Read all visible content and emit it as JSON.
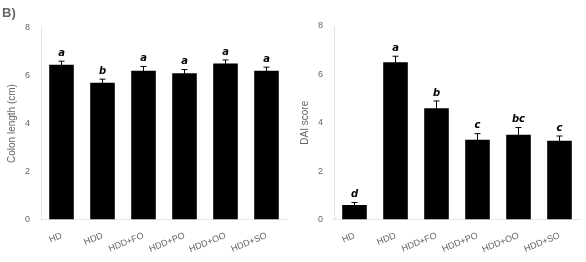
{
  "chart_data": [
    {
      "type": "bar",
      "title": "B)",
      "categories": [
        "HD",
        "HDD",
        "HDD+FO",
        "HDD+PO",
        "HDD+OO",
        "HDD+SO"
      ],
      "values": [
        6.45,
        5.7,
        6.2,
        6.1,
        6.5,
        6.2
      ],
      "errors": [
        0.15,
        0.15,
        0.18,
        0.15,
        0.15,
        0.15
      ],
      "annotations": [
        "a",
        "b",
        "a",
        "a",
        "a",
        "a"
      ],
      "color": "#000000",
      "ylabel": "Colon length (cm)",
      "ylim": [
        0,
        8
      ],
      "yticks": [
        0,
        2,
        4,
        6,
        8
      ],
      "grid": false
    },
    {
      "type": "bar",
      "categories": [
        "HD",
        "HDD",
        "HDD+FO",
        "HDD+PO",
        "HDD+OO",
        "HDD+SO"
      ],
      "values": [
        0.6,
        6.5,
        4.6,
        3.3,
        3.5,
        3.25
      ],
      "errors": [
        0.1,
        0.25,
        0.3,
        0.25,
        0.3,
        0.2
      ],
      "annotations": [
        "d",
        "a",
        "b",
        "c",
        "bc",
        "c"
      ],
      "color": "#000000",
      "ylabel": "DAI score",
      "ylim": [
        0,
        8
      ],
      "yticks": [
        0,
        2,
        4,
        6,
        8
      ],
      "grid": false
    }
  ]
}
